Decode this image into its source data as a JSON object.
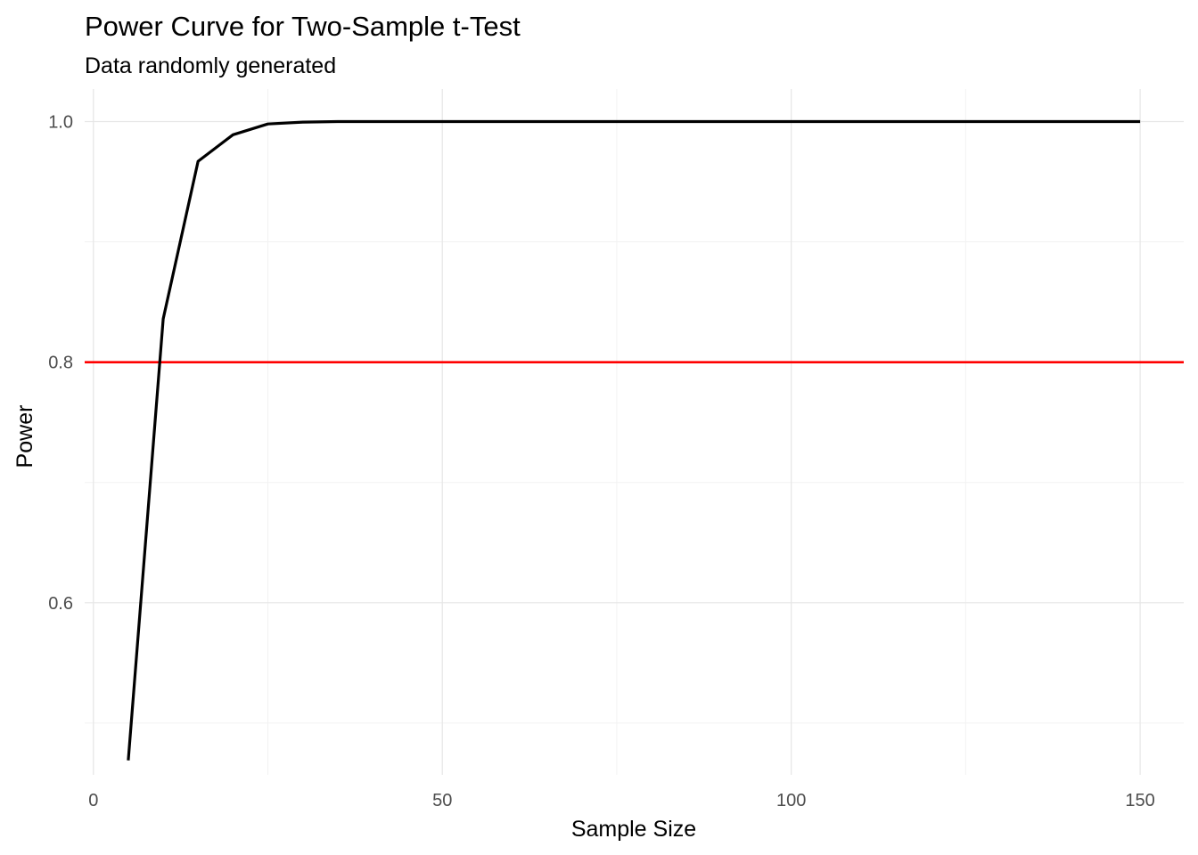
{
  "chart_data": {
    "type": "line",
    "title": "Power Curve for Two-Sample t-Test",
    "subtitle": "Data randomly generated",
    "xlabel": "Sample Size",
    "ylabel": "Power",
    "xlim": [
      -1.25,
      156.25
    ],
    "ylim": [
      0.457,
      1.027
    ],
    "x_ticks": [
      0,
      50,
      100,
      150
    ],
    "x_tick_labels": [
      "0",
      "50",
      "100",
      "150"
    ],
    "y_ticks": [
      0.6,
      0.8,
      1.0
    ],
    "y_tick_labels": [
      "0.6",
      "0.8",
      "1.0"
    ],
    "x_minor_ticks": [
      25,
      75,
      125
    ],
    "y_minor_ticks": [
      0.5,
      0.7,
      0.9
    ],
    "grid": true,
    "series": [
      {
        "color": "#000000",
        "x": [
          5,
          10,
          15,
          20,
          25,
          30,
          35,
          40,
          45,
          50,
          55,
          60,
          65,
          70,
          75,
          80,
          85,
          90,
          95,
          100,
          105,
          110,
          115,
          120,
          125,
          130,
          135,
          140,
          145,
          150
        ],
        "y": [
          0.469,
          0.836,
          0.967,
          0.989,
          0.998,
          0.9995,
          1.0,
          1.0,
          1.0,
          1.0,
          1.0,
          1.0,
          1.0,
          1.0,
          1.0,
          1.0,
          1.0,
          1.0,
          1.0,
          1.0,
          1.0,
          1.0,
          1.0,
          1.0,
          1.0,
          1.0,
          1.0,
          1.0,
          1.0,
          1.0
        ]
      }
    ],
    "reference_lines": [
      {
        "axis": "y",
        "value": 0.8,
        "color": "#ff0000"
      }
    ]
  }
}
